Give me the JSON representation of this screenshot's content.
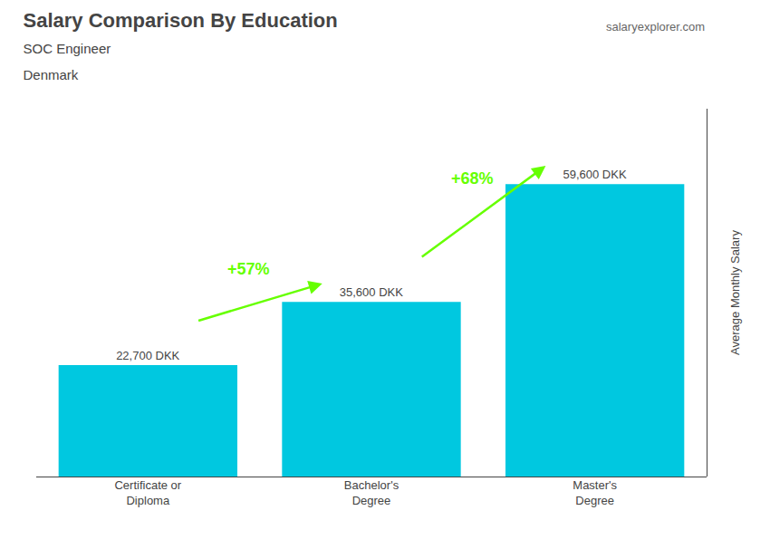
{
  "chart_data": {
    "type": "bar",
    "title": "Salary Comparison By Education",
    "subtitle": [
      "SOC Engineer",
      "Denmark"
    ],
    "ylabel": "Average Monthly Salary",
    "categories": [
      "Certificate or\nDiploma",
      "Bachelor's\nDegree",
      "Master's\nDegree"
    ],
    "values": [
      22700,
      35600,
      59600
    ],
    "value_labels": [
      "22,700 DKK",
      "35,600 DKK",
      "59,600 DKK"
    ],
    "data_labels": true,
    "color": "#00c8e0",
    "ylim": [
      0,
      75000
    ],
    "yticks": [],
    "tick_labels": "x",
    "annotations": [
      {
        "text": "+57%",
        "color": "#66ff00"
      },
      {
        "text": "+68%",
        "color": "#66ff00"
      },
      {
        "text": "salaryexplorer.com"
      }
    ]
  }
}
